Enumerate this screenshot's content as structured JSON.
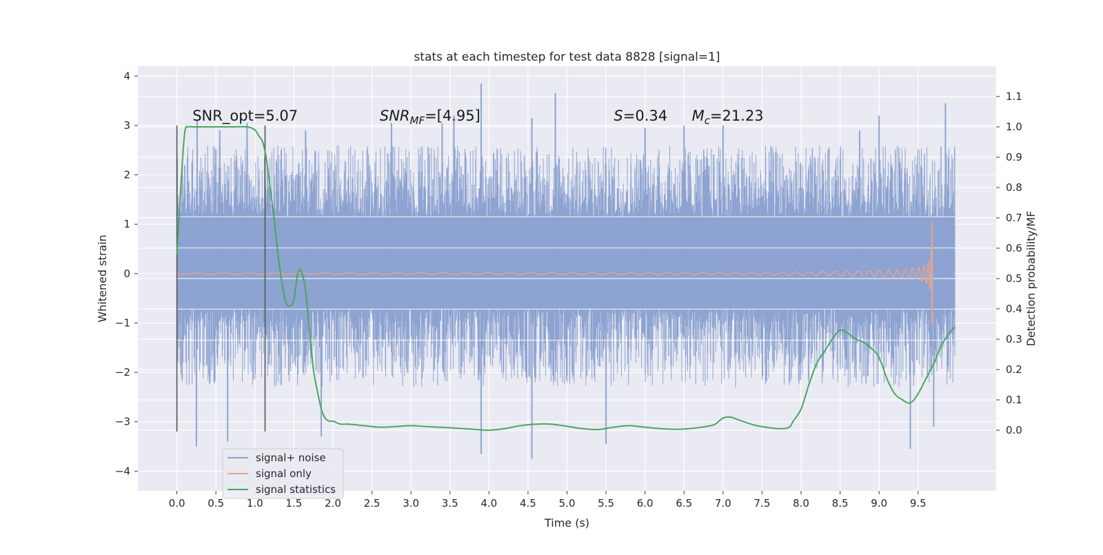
{
  "chart_data": {
    "type": "line",
    "title": "stats at each timestep for test data 8828 [signal=1]",
    "xlabel": "Time (s)",
    "ylabel": "Whitened strain",
    "ylabel_right": "Detection probability/MF",
    "xlim": [
      -0.5,
      10.5
    ],
    "ylim": [
      -4.4,
      4.2
    ],
    "ylim_right": [
      -0.2,
      1.2
    ],
    "x_ticks": [
      "0.0",
      "0.5",
      "1.0",
      "1.5",
      "2.0",
      "2.5",
      "3.0",
      "3.5",
      "4.0",
      "4.5",
      "5.0",
      "5.5",
      "6.0",
      "6.5",
      "7.0",
      "7.5",
      "8.0",
      "8.5",
      "9.0",
      "9.5"
    ],
    "x_tick_values": [
      0,
      0.5,
      1,
      1.5,
      2,
      2.5,
      3,
      3.5,
      4,
      4.5,
      5,
      5.5,
      6,
      6.5,
      7,
      7.5,
      8,
      8.5,
      9,
      9.5
    ],
    "y_ticks": [
      "4",
      "3",
      "2",
      "1",
      "0",
      "−1",
      "−2",
      "−3",
      "−4"
    ],
    "y_tick_values": [
      4,
      3,
      2,
      1,
      0,
      -1,
      -2,
      -3,
      -4
    ],
    "y_right_ticks": [
      "1.1",
      "1.0",
      "0.9",
      "0.8",
      "0.7",
      "0.6",
      "0.5",
      "0.4",
      "0.3",
      "0.2",
      "0.1",
      "0.0"
    ],
    "y_right_tick_values": [
      1.1,
      1.0,
      0.9,
      0.8,
      0.7,
      0.6,
      0.5,
      0.4,
      0.3,
      0.2,
      0.1,
      0.0
    ],
    "grid": true,
    "legend_position": "bottom-left",
    "annotations": [
      {
        "text": "SNR_opt=5.07",
        "x": 0.2,
        "y": 3.1
      },
      {
        "prefix": "SNR",
        "sub": "MF",
        "suffix": "=[4.95]",
        "x": 2.6,
        "y": 3.1
      },
      {
        "prefix": "S",
        "sub": "",
        "suffix": "=0.34",
        "x": 5.6,
        "y": 3.1
      },
      {
        "prefix": "M",
        "sub": "c",
        "suffix": "=21.23",
        "x": 6.6,
        "y": 3.1
      }
    ],
    "vlines": [
      {
        "x": 0.0,
        "y0": -3.2,
        "y1": 3.0
      },
      {
        "x": 1.13,
        "y0": -3.2,
        "y1": 3.0
      }
    ],
    "series": [
      {
        "name": "signal+ noise",
        "color": "#8da3d1",
        "axis": "left",
        "x_range": [
          0,
          9.97
        ],
        "band": [
          -0.7,
          1.15
        ],
        "typical_upper": 2.0,
        "typical_lower": -1.7,
        "spikes": [
          [
            0.26,
            3.1
          ],
          [
            0.55,
            2.9
          ],
          [
            0.9,
            3.05
          ],
          [
            1.65,
            2.9
          ],
          [
            2.75,
            3.05
          ],
          [
            3.4,
            3.05
          ],
          [
            3.55,
            3.2
          ],
          [
            3.9,
            3.85
          ],
          [
            4.55,
            3.15
          ],
          [
            4.85,
            3.65
          ],
          [
            6.0,
            2.95
          ],
          [
            6.5,
            3.0
          ],
          [
            7.0,
            3.0
          ],
          [
            8.75,
            2.9
          ],
          [
            9.0,
            3.2
          ],
          [
            9.85,
            3.45
          ],
          [
            0.25,
            -3.5
          ],
          [
            0.65,
            -3.4
          ],
          [
            3.9,
            -3.65
          ],
          [
            4.55,
            -3.75
          ],
          [
            5.5,
            -3.45
          ],
          [
            9.4,
            -3.55
          ],
          [
            9.7,
            -3.1
          ],
          [
            1.85,
            -3.3
          ]
        ]
      },
      {
        "name": "signal only",
        "color": "#e8a58c",
        "axis": "left",
        "chirp_end": 9.68,
        "chirp_peak": 1.05
      },
      {
        "name": "signal statistics",
        "color": "#4aa65d",
        "axis": "right",
        "x": [
          0.0,
          0.05,
          0.1,
          0.15,
          0.2,
          0.3,
          0.5,
          0.7,
          0.9,
          1.0,
          1.05,
          1.1,
          1.15,
          1.2,
          1.25,
          1.3,
          1.35,
          1.4,
          1.45,
          1.5,
          1.55,
          1.6,
          1.65,
          1.7,
          1.75,
          1.8,
          1.85,
          1.9,
          1.95,
          2.0,
          2.1,
          2.2,
          2.4,
          2.6,
          2.8,
          3.0,
          3.2,
          3.5,
          3.8,
          4.0,
          4.2,
          4.4,
          4.6,
          4.8,
          5.0,
          5.2,
          5.4,
          5.6,
          5.8,
          6.0,
          6.2,
          6.4,
          6.6,
          6.8,
          6.9,
          7.0,
          7.1,
          7.2,
          7.4,
          7.6,
          7.75,
          7.85,
          7.9,
          8.0,
          8.1,
          8.2,
          8.3,
          8.4,
          8.5,
          8.6,
          8.7,
          8.8,
          8.9,
          9.0,
          9.1,
          9.2,
          9.3,
          9.4,
          9.5,
          9.6,
          9.7,
          9.8,
          9.9,
          9.97
        ],
        "y": [
          0.58,
          0.8,
          0.98,
          1.0,
          1.0,
          1.0,
          1.0,
          1.0,
          1.0,
          0.99,
          0.97,
          0.95,
          0.89,
          0.79,
          0.69,
          0.57,
          0.48,
          0.42,
          0.41,
          0.43,
          0.52,
          0.52,
          0.46,
          0.33,
          0.2,
          0.13,
          0.07,
          0.04,
          0.03,
          0.03,
          0.02,
          0.02,
          0.015,
          0.01,
          0.012,
          0.015,
          0.012,
          0.008,
          0.003,
          0.0,
          0.005,
          0.015,
          0.02,
          0.02,
          0.013,
          0.005,
          0.002,
          0.01,
          0.015,
          0.01,
          0.005,
          0.003,
          0.006,
          0.013,
          0.02,
          0.04,
          0.043,
          0.034,
          0.017,
          0.008,
          0.005,
          0.01,
          0.03,
          0.07,
          0.15,
          0.22,
          0.26,
          0.3,
          0.33,
          0.32,
          0.3,
          0.29,
          0.27,
          0.24,
          0.17,
          0.12,
          0.1,
          0.09,
          0.12,
          0.17,
          0.22,
          0.28,
          0.32,
          0.34
        ]
      }
    ]
  }
}
